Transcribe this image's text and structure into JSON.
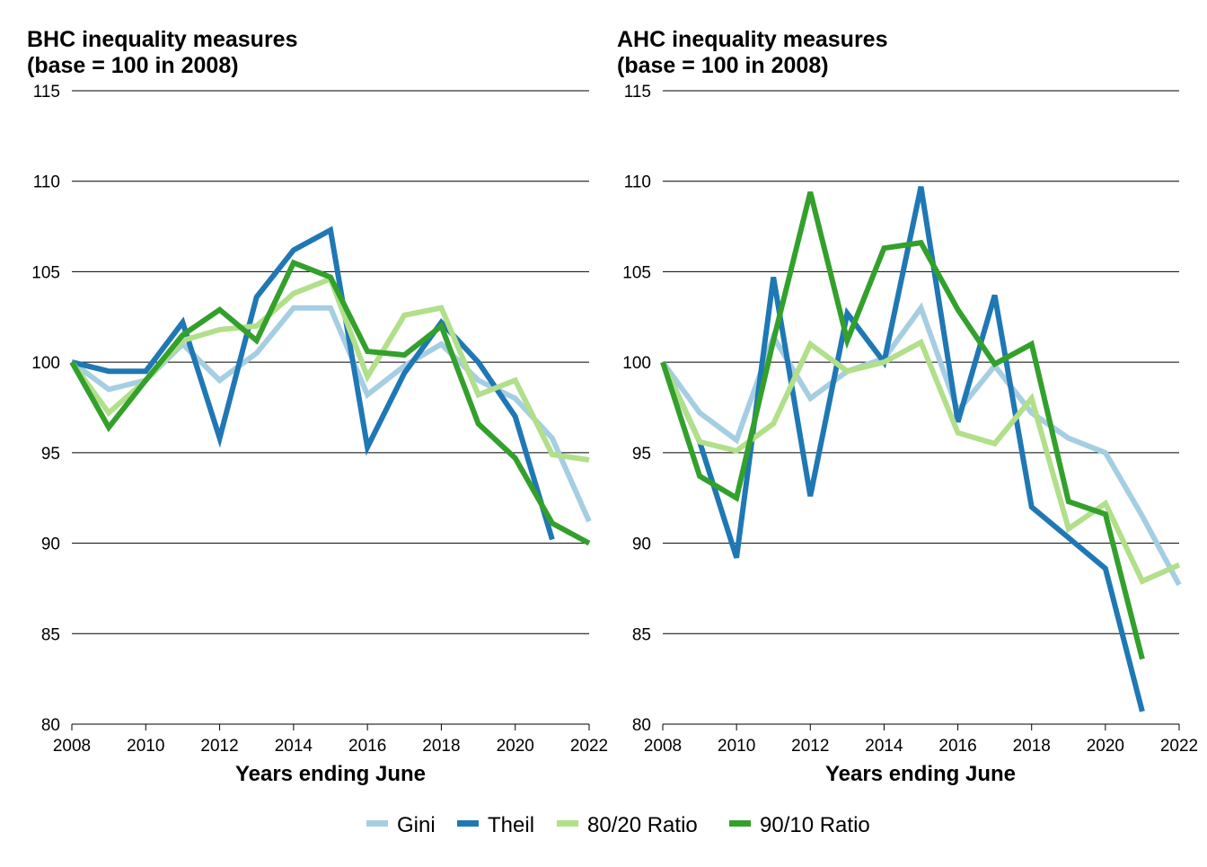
{
  "chart_data": [
    {
      "type": "line",
      "title_line1": "BHC inequality measures",
      "title_line2": "(base = 100 in 2008)",
      "xlabel": "Years ending June",
      "ylabel": "",
      "ylim": [
        80,
        115
      ],
      "xlim": [
        2008,
        2022
      ],
      "yticks": [
        "80",
        "85",
        "90",
        "95",
        "100",
        "105",
        "110",
        "115"
      ],
      "xticks": [
        "2008",
        "2010",
        "2012",
        "2014",
        "2016",
        "2018",
        "2020",
        "2022"
      ],
      "grid": true,
      "x": [
        2008,
        2009,
        2010,
        2011,
        2012,
        2013,
        2014,
        2015,
        2016,
        2017,
        2018,
        2019,
        2020,
        2021,
        2022
      ],
      "series": [
        {
          "name": "Gini",
          "color": "#a6cee3",
          "values": [
            100,
            98.5,
            99.0,
            101.0,
            99.0,
            100.5,
            103.0,
            103.0,
            98.2,
            99.8,
            101.0,
            99.0,
            98.0,
            95.8,
            91.2
          ]
        },
        {
          "name": "Theil",
          "color": "#1f78b4",
          "values": [
            100,
            99.5,
            99.5,
            102.2,
            95.8,
            103.6,
            106.2,
            107.3,
            95.3,
            99.4,
            102.2,
            100.0,
            97.0,
            90.2,
            null
          ]
        },
        {
          "name": "80/20 Ratio",
          "color": "#b2df8a",
          "values": [
            100,
            97.2,
            99.0,
            101.2,
            101.8,
            102.0,
            103.8,
            104.6,
            99.2,
            102.6,
            103.0,
            98.2,
            99.0,
            94.9,
            94.6
          ]
        },
        {
          "name": "90/10 Ratio",
          "color": "#33a02c",
          "values": [
            100,
            96.4,
            99.0,
            101.5,
            102.9,
            101.2,
            105.5,
            104.7,
            100.6,
            100.4,
            102.0,
            96.6,
            94.7,
            91.1,
            90.0
          ]
        }
      ]
    },
    {
      "type": "line",
      "title_line1": "AHC inequality measures",
      "title_line2": "(base = 100 in 2008)",
      "xlabel": "Years ending June",
      "ylabel": "",
      "ylim": [
        80,
        115
      ],
      "xlim": [
        2008,
        2022
      ],
      "yticks": [
        "80",
        "85",
        "90",
        "95",
        "100",
        "105",
        "110",
        "115"
      ],
      "xticks": [
        "2008",
        "2010",
        "2012",
        "2014",
        "2016",
        "2018",
        "2020",
        "2022"
      ],
      "grid": true,
      "x": [
        2008,
        2009,
        2010,
        2011,
        2012,
        2013,
        2014,
        2015,
        2016,
        2017,
        2018,
        2019,
        2020,
        2021,
        2022
      ],
      "series": [
        {
          "name": "Gini",
          "color": "#a6cee3",
          "values": [
            100,
            97.2,
            95.7,
            101.4,
            98.0,
            99.5,
            100.2,
            103.0,
            97.3,
            99.8,
            97.2,
            95.8,
            95.0,
            91.5,
            87.7
          ]
        },
        {
          "name": "Theil",
          "color": "#1f78b4",
          "values": [
            100,
            95.6,
            89.2,
            104.7,
            92.6,
            102.7,
            100.0,
            109.7,
            96.7,
            103.7,
            92.0,
            90.3,
            88.6,
            80.7,
            null
          ]
        },
        {
          "name": "80/20 Ratio",
          "color": "#b2df8a",
          "values": [
            100,
            95.6,
            95.1,
            96.6,
            101.0,
            99.5,
            100.0,
            101.1,
            96.1,
            95.5,
            98.0,
            90.8,
            92.2,
            87.9,
            88.8
          ]
        },
        {
          "name": "90/10 Ratio",
          "color": "#33a02c",
          "values": [
            100,
            93.7,
            92.5,
            101.2,
            109.4,
            101.2,
            106.3,
            106.6,
            102.9,
            99.9,
            101.0,
            92.3,
            91.6,
            83.6,
            null
          ]
        }
      ]
    }
  ],
  "legend": {
    "placement": "bottom",
    "items": [
      {
        "label": "Gini",
        "color": "#a6cee3"
      },
      {
        "label": "Theil",
        "color": "#1f78b4"
      },
      {
        "label": "80/20 Ratio",
        "color": "#b2df8a"
      },
      {
        "label": "90/10 Ratio",
        "color": "#33a02c"
      }
    ]
  }
}
